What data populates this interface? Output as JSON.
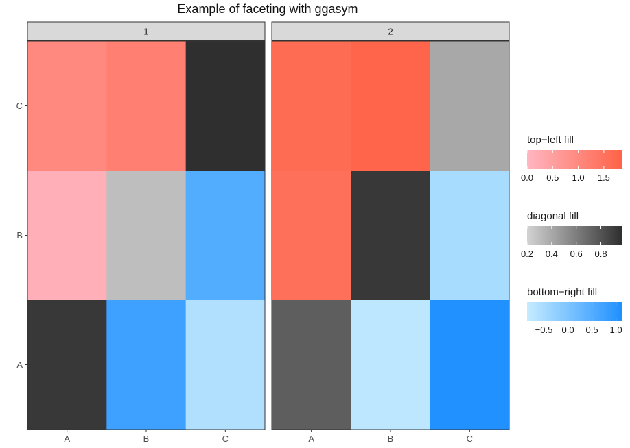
{
  "chart_data": {
    "type": "heatmap",
    "title": "Example of faceting with ggasym",
    "xlabel": "",
    "ylabel": "",
    "x_categories": [
      "A",
      "B",
      "C"
    ],
    "y_categories": [
      "A",
      "B",
      "C"
    ],
    "facets": [
      {
        "label": "1",
        "cells": [
          {
            "x": "A",
            "y": "C",
            "fill": "top-left",
            "value": 1.0
          },
          {
            "x": "B",
            "y": "C",
            "fill": "top-left",
            "value": 1.2
          },
          {
            "x": "C",
            "y": "C",
            "fill": "diagonal",
            "value": 0.97
          },
          {
            "x": "A",
            "y": "B",
            "fill": "top-left",
            "value": 0.15
          },
          {
            "x": "B",
            "y": "B",
            "fill": "diagonal",
            "value": 0.3
          },
          {
            "x": "C",
            "y": "B",
            "fill": "bottom-right",
            "value": 0.5
          },
          {
            "x": "A",
            "y": "A",
            "fill": "diagonal",
            "value": 0.93
          },
          {
            "x": "B",
            "y": "A",
            "fill": "bottom-right",
            "value": 0.75
          },
          {
            "x": "C",
            "y": "A",
            "fill": "bottom-right",
            "value": -0.6
          }
        ]
      },
      {
        "label": "2",
        "cells": [
          {
            "x": "A",
            "y": "C",
            "fill": "top-left",
            "value": 1.65
          },
          {
            "x": "B",
            "y": "C",
            "fill": "top-left",
            "value": 1.8
          },
          {
            "x": "C",
            "y": "C",
            "fill": "diagonal",
            "value": 0.4
          },
          {
            "x": "A",
            "y": "B",
            "fill": "top-left",
            "value": 1.55
          },
          {
            "x": "B",
            "y": "B",
            "fill": "diagonal",
            "value": 0.93
          },
          {
            "x": "C",
            "y": "B",
            "fill": "bottom-right",
            "value": -0.5
          },
          {
            "x": "A",
            "y": "A",
            "fill": "diagonal",
            "value": 0.75
          },
          {
            "x": "B",
            "y": "A",
            "fill": "bottom-right",
            "value": -0.75
          },
          {
            "x": "C",
            "y": "A",
            "fill": "bottom-right",
            "value": 1.1
          }
        ]
      }
    ],
    "legends": [
      {
        "key": "top-left",
        "title": "top−left fill",
        "range": [
          0.0,
          1.85
        ],
        "ticks": [
          0.0,
          0.5,
          1.0,
          1.5
        ],
        "tick_labels": [
          "0.0",
          "0.5",
          "1.0",
          "1.5"
        ],
        "low_color": "#ffb6c1",
        "high_color": "#ff6347"
      },
      {
        "key": "diagonal",
        "title": "diagonal fill",
        "range": [
          0.2,
          0.97
        ],
        "ticks": [
          0.2,
          0.4,
          0.6,
          0.8
        ],
        "tick_labels": [
          "0.2",
          "0.4",
          "0.6",
          "0.8"
        ],
        "low_color": "#d3d3d3",
        "high_color": "#2f2f2f"
      },
      {
        "key": "bottom-right",
        "title": "bottom−right fill",
        "range": [
          -0.85,
          1.12
        ],
        "ticks": [
          -0.5,
          0.0,
          0.5,
          1.0
        ],
        "tick_labels": [
          "−0.5",
          "0.0",
          "0.5",
          "1.0"
        ],
        "low_color": "#c6ecff",
        "high_color": "#1e90ff"
      }
    ],
    "panel_background": "#ffffff",
    "strip_background": "#d9d9d9",
    "grid": false,
    "legend_position": "right"
  }
}
